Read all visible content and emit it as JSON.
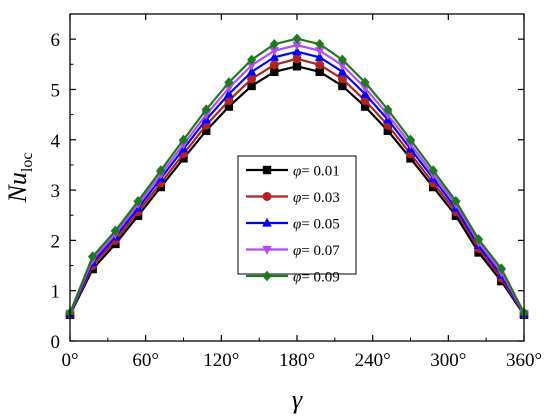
{
  "chart_data": {
    "type": "line",
    "title": "",
    "xlabel": "γ",
    "ylabel": "Nu",
    "ylabel_sub": "loc",
    "xlim": [
      0,
      360
    ],
    "ylim": [
      0,
      6.5
    ],
    "x_ticks": [
      0,
      60,
      120,
      180,
      240,
      300,
      360
    ],
    "x_tick_labels": [
      "0°",
      "60°",
      "120°",
      "180°",
      "240°",
      "300°",
      "360°"
    ],
    "y_ticks": [
      0,
      1,
      2,
      3,
      4,
      5,
      6
    ],
    "y_tick_labels": [
      "0",
      "1",
      "2",
      "3",
      "4",
      "5",
      "6"
    ],
    "grid": false,
    "legend_position": "center",
    "x": [
      0,
      18,
      36,
      54,
      72,
      90,
      108,
      126,
      144,
      162,
      180,
      198,
      216,
      234,
      252,
      270,
      288,
      306,
      324,
      342,
      360
    ],
    "series": [
      {
        "name": "φ= 0.01",
        "label_symbol": "φ",
        "label_rest": "= 0.01",
        "color": "#000000",
        "marker": "square",
        "values": [
          0.52,
          1.43,
          1.93,
          2.49,
          3.06,
          3.63,
          4.18,
          4.66,
          5.07,
          5.35,
          5.46,
          5.35,
          5.07,
          4.66,
          4.18,
          3.63,
          3.06,
          2.49,
          1.76,
          1.19,
          0.52
        ]
      },
      {
        "name": "φ= 0.03",
        "label_symbol": "φ",
        "label_rest": "= 0.03",
        "color": "#b22222",
        "marker": "circle",
        "values": [
          0.53,
          1.5,
          2.0,
          2.57,
          3.14,
          3.72,
          4.29,
          4.78,
          5.21,
          5.49,
          5.61,
          5.49,
          5.21,
          4.78,
          4.29,
          3.72,
          3.14,
          2.57,
          1.84,
          1.25,
          0.53
        ]
      },
      {
        "name": "φ= 0.05",
        "label_symbol": "φ",
        "label_rest": "= 0.05",
        "color": "#0000ff",
        "marker": "triangle-up",
        "values": [
          0.54,
          1.56,
          2.07,
          2.64,
          3.23,
          3.82,
          4.4,
          4.91,
          5.35,
          5.64,
          5.75,
          5.64,
          5.35,
          4.91,
          4.4,
          3.82,
          3.23,
          2.64,
          1.9,
          1.31,
          0.54
        ]
      },
      {
        "name": "φ= 0.07",
        "label_symbol": "φ",
        "label_rest": "= 0.07",
        "color": "#b44cf0",
        "marker": "triangle-down",
        "values": [
          0.55,
          1.62,
          2.13,
          2.72,
          3.31,
          3.91,
          4.5,
          5.03,
          5.48,
          5.77,
          5.88,
          5.77,
          5.48,
          5.03,
          4.5,
          3.91,
          3.31,
          2.72,
          1.96,
          1.37,
          0.55
        ]
      },
      {
        "name": "φ= 0.09",
        "label_symbol": "φ",
        "label_rest": "= 0.09",
        "color": "#1f7a1f",
        "marker": "diamond",
        "values": [
          0.56,
          1.68,
          2.19,
          2.78,
          3.39,
          4.0,
          4.6,
          5.14,
          5.59,
          5.9,
          6.01,
          5.9,
          5.59,
          5.14,
          4.6,
          4.0,
          3.39,
          2.78,
          2.02,
          1.44,
          0.56
        ]
      }
    ]
  }
}
